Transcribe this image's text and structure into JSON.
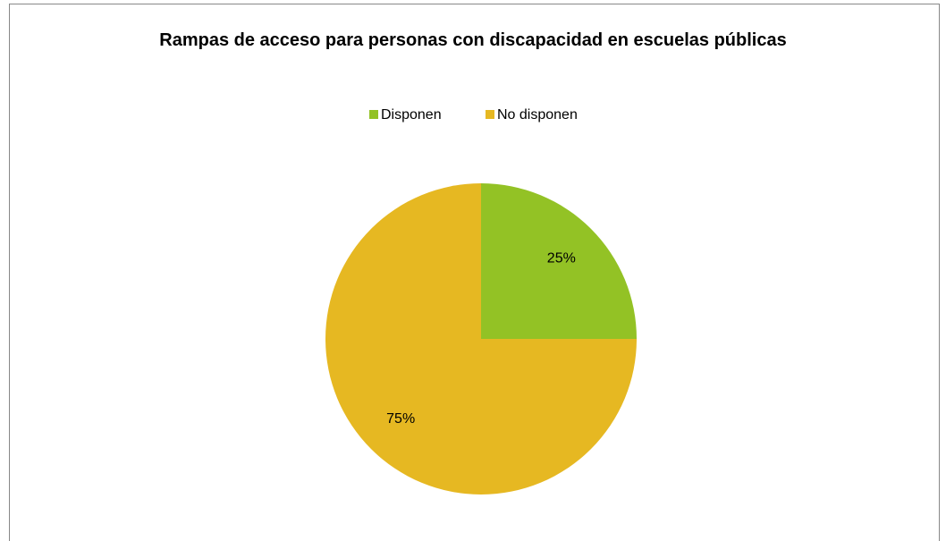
{
  "chart_data": {
    "type": "pie",
    "title": "Rampas de acceso para personas con discapacidad en escuelas públicas",
    "categories": [
      "Disponen",
      "No disponen"
    ],
    "values": [
      25,
      75
    ],
    "value_labels": [
      "25%",
      "75%"
    ],
    "colors": [
      "#93c225",
      "#e6b822"
    ],
    "legend": "top"
  }
}
